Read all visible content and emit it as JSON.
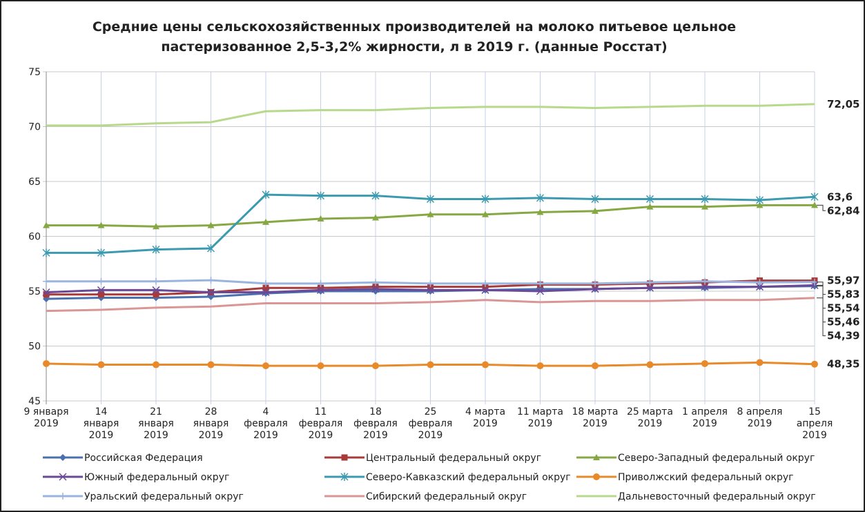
{
  "chart_data": {
    "type": "line",
    "title": [
      "Средние цены сельскохозяйственных производителей на молоко питьевое цельное",
      "пастеризованное 2,5-3,2% жирности, л в 2019 г. (данные Росстат)"
    ],
    "categories": [
      [
        "9 января",
        "2019"
      ],
      [
        "14",
        "января",
        "2019"
      ],
      [
        "21",
        "января",
        "2019"
      ],
      [
        "28",
        "января",
        "2019"
      ],
      [
        "4",
        "февраля",
        "2019"
      ],
      [
        "11",
        "февраля",
        "2019"
      ],
      [
        "18",
        "февраля",
        "2019"
      ],
      [
        "25",
        "февраля",
        "2019"
      ],
      [
        "4 марта",
        "2019"
      ],
      [
        "11 марта",
        "2019"
      ],
      [
        "18 марта",
        "2019"
      ],
      [
        "25 марта",
        "2019"
      ],
      [
        "1 апреля",
        "2019"
      ],
      [
        "8 апреля",
        "2019"
      ],
      [
        "15",
        "апреля",
        "2019"
      ]
    ],
    "ylim": [
      45,
      75
    ],
    "yticks": [
      45,
      50,
      55,
      60,
      65,
      70,
      75
    ],
    "grid": true,
    "series": [
      {
        "name": "Российская Федерация",
        "color": "#4a70b0",
        "marker": "diamond",
        "values": [
          54.3,
          54.4,
          54.4,
          54.5,
          54.8,
          55.0,
          55.0,
          55.0,
          55.1,
          55.2,
          55.2,
          55.3,
          55.3,
          55.4,
          55.46
        ],
        "value_labels": [
          null,
          null,
          null,
          null,
          null,
          null,
          null,
          null,
          null,
          null,
          null,
          null,
          null,
          null,
          "55,46"
        ],
        "label_color": "#1f3a5f"
      },
      {
        "name": "Центральный федеральный округ",
        "color": "#a83a3a",
        "marker": "square",
        "values": [
          54.7,
          54.7,
          54.7,
          54.9,
          55.3,
          55.3,
          55.4,
          55.4,
          55.4,
          55.6,
          55.6,
          55.7,
          55.8,
          55.97,
          55.97
        ],
        "value_labels": [
          null,
          null,
          null,
          null,
          null,
          null,
          null,
          null,
          null,
          null,
          null,
          null,
          null,
          null,
          "55,97"
        ],
        "label_color": "#c00000"
      },
      {
        "name": "Северо-Западный федеральный округ",
        "color": "#86a843",
        "marker": "triangle",
        "values": [
          61.0,
          61.0,
          60.9,
          61.0,
          61.3,
          61.6,
          61.7,
          62.0,
          62.0,
          62.2,
          62.3,
          62.7,
          62.7,
          62.84,
          62.84
        ],
        "value_labels": [
          null,
          null,
          null,
          null,
          null,
          null,
          null,
          null,
          null,
          null,
          null,
          null,
          null,
          null,
          "62,84"
        ],
        "label_color": "#6f8f30"
      },
      {
        "name": "Южный федеральный округ",
        "color": "#6a4a96",
        "marker": "x",
        "values": [
          54.9,
          55.1,
          55.1,
          54.9,
          54.9,
          55.1,
          55.2,
          55.1,
          55.1,
          55.0,
          55.2,
          55.3,
          55.4,
          55.4,
          55.54
        ],
        "value_labels": [
          null,
          null,
          null,
          null,
          null,
          null,
          null,
          null,
          null,
          null,
          null,
          null,
          null,
          null,
          "55,54"
        ],
        "label_color": "#7030a0"
      },
      {
        "name": "Северо-Кавказский федеральный округ",
        "color": "#3b9ab0",
        "marker": "star",
        "values": [
          58.5,
          58.5,
          58.8,
          58.9,
          63.8,
          63.7,
          63.7,
          63.4,
          63.4,
          63.5,
          63.4,
          63.4,
          63.4,
          63.3,
          63.6
        ],
        "value_labels": [
          null,
          null,
          null,
          null,
          null,
          null,
          null,
          null,
          null,
          null,
          null,
          null,
          null,
          null,
          "63,6"
        ],
        "label_color": "#1f3a5f"
      },
      {
        "name": "Приволжский федеральный округ",
        "color": "#e8892a",
        "marker": "circle",
        "values": [
          48.4,
          48.3,
          48.3,
          48.3,
          48.2,
          48.2,
          48.2,
          48.3,
          48.3,
          48.2,
          48.2,
          48.3,
          48.4,
          48.5,
          48.35
        ],
        "value_labels": [
          null,
          null,
          null,
          null,
          null,
          null,
          null,
          null,
          null,
          null,
          null,
          null,
          null,
          null,
          "48,35"
        ],
        "label_color": "#e46c0a"
      },
      {
        "name": "Уральский федеральный округ",
        "color": "#9ab4e0",
        "marker": "plus",
        "values": [
          55.9,
          55.9,
          55.9,
          56.0,
          55.7,
          55.7,
          55.8,
          55.7,
          55.7,
          55.7,
          55.7,
          55.8,
          55.9,
          55.8,
          55.83
        ],
        "value_labels": [
          null,
          null,
          null,
          null,
          null,
          null,
          null,
          null,
          null,
          null,
          null,
          null,
          null,
          null,
          "55,83"
        ],
        "label_color": "#31859c"
      },
      {
        "name": "Сибирский федеральный округ",
        "color": "#d99694",
        "marker": "none",
        "values": [
          53.2,
          53.3,
          53.5,
          53.6,
          53.9,
          53.9,
          53.9,
          54.0,
          54.2,
          54.0,
          54.1,
          54.1,
          54.2,
          54.2,
          54.39
        ],
        "value_labels": [
          null,
          null,
          null,
          null,
          null,
          null,
          null,
          null,
          null,
          null,
          null,
          null,
          null,
          null,
          "54,39"
        ],
        "label_color": "#d99694"
      },
      {
        "name": "Дальневосточный федеральный округ",
        "color": "#b7d98c",
        "marker": "none",
        "values": [
          70.1,
          70.1,
          70.3,
          70.4,
          71.4,
          71.5,
          71.5,
          71.7,
          71.8,
          71.8,
          71.7,
          71.8,
          71.9,
          71.9,
          72.05
        ],
        "value_labels": [
          null,
          null,
          null,
          null,
          null,
          null,
          null,
          null,
          null,
          null,
          null,
          null,
          null,
          null,
          "72,05"
        ],
        "label_color": "#86a843"
      }
    ]
  }
}
